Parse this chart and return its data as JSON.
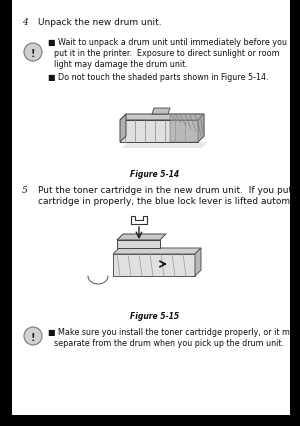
{
  "page_bg": "#ffffff",
  "text_color": "#111111",
  "gray_color": "#555555",
  "icon_bg": "#cccccc",
  "step4_num": "4",
  "step4_text": "Unpack the new drum unit.",
  "warn1_line1": "Wait to unpack a drum unit until immediately before you",
  "warn1_line2": "put it in the printer.  Exposure to direct sunlight or room",
  "warn1_line3": "light may damage the drum unit.",
  "warn1_bullet2": "Do not touch the shaded parts shown in Figure 5-14.",
  "fig14_label": "Figure 5-14",
  "step5_num": "5",
  "step5_line1": "Put the toner cartridge in the new drum unit.  If you put the",
  "step5_line2": "cartridge in properly, the blue lock lever is lifted automatically.",
  "fig15_label": "Figure 5-15",
  "warn2_line1": "Make sure you install the toner cartridge properly, or it may",
  "warn2_line2": "separate from the drum when you pick up the drum unit.",
  "font_size_step": 6.5,
  "font_size_body": 5.8,
  "font_size_fig": 5.5
}
